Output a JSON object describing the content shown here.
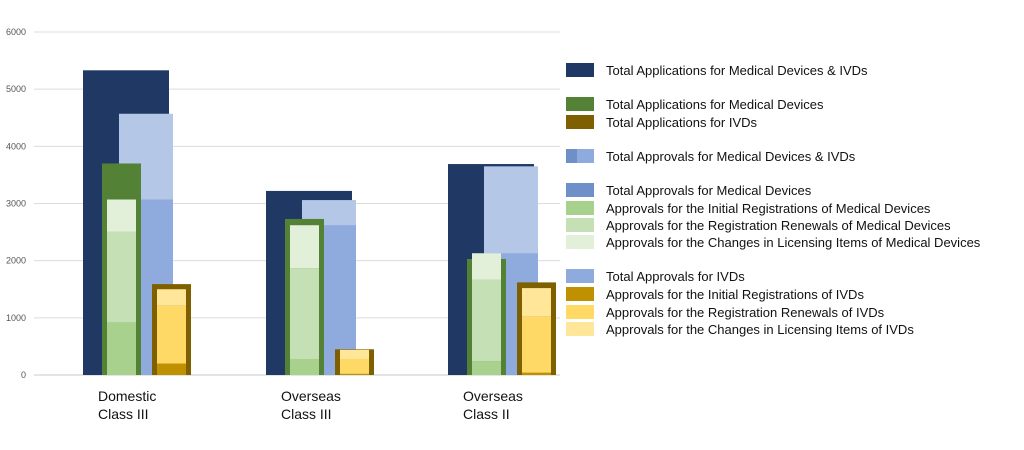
{
  "chart_data": {
    "type": "bar",
    "title": "",
    "xlabel": "",
    "ylabel": "",
    "ylim": [
      0,
      6000
    ],
    "yticks": [
      0,
      1000,
      2000,
      3000,
      4000,
      5000,
      6000
    ],
    "grid": true,
    "legend_position": "right",
    "categories": [
      {
        "line1": "Domestic",
        "line2": "Class III"
      },
      {
        "line1": "Overseas",
        "line2": "Class III"
      },
      {
        "line1": "Overseas",
        "line2": "Class II"
      }
    ],
    "series": [
      {
        "key": "total_apps",
        "name": "Total Applications for Medical Devices & IVDs",
        "values": [
          5330,
          3220,
          3690
        ]
      },
      {
        "key": "total_approvals",
        "name": "Total Approvals for Medical Devices & IVDs",
        "values": [
          4570,
          3060,
          3650
        ]
      },
      {
        "key": "total_approvals_md",
        "name": "Total Approvals for Medical Devices",
        "values": [
          3070,
          2620,
          2130
        ]
      },
      {
        "key": "apps_md",
        "name": "Total Applications for Medical Devices",
        "values": [
          3700,
          2730,
          2030
        ]
      },
      {
        "key": "appr_md_initial",
        "name": "Approvals for the Initial Registrations of Medical Devices",
        "values": [
          920,
          280,
          240
        ]
      },
      {
        "key": "appr_md_renewal",
        "name": "Approvals for the Registration Renewals of Medical Devices",
        "values": [
          1590,
          1590,
          1430
        ]
      },
      {
        "key": "appr_md_changes",
        "name": "Approvals for the Changes in Licensing Items of Medical Devices",
        "values": [
          560,
          750,
          460
        ]
      },
      {
        "key": "apps_ivd",
        "name": "Total Applications for IVDs",
        "values": [
          1590,
          450,
          1620
        ]
      },
      {
        "key": "total_approvals_ivd",
        "name": "Total Approvals for IVDs",
        "values": [
          1500,
          440,
          1520
        ]
      },
      {
        "key": "appr_ivd_initial",
        "name": "Approvals for the Initial Registrations of IVDs",
        "values": [
          200,
          20,
          40
        ]
      },
      {
        "key": "appr_ivd_renewal",
        "name": "Approvals for the Registration Renewals of IVDs",
        "values": [
          1010,
          260,
          980
        ]
      },
      {
        "key": "appr_ivd_changes",
        "name": "Approvals for the Changes in Licensing Items of IVDs",
        "values": [
          290,
          160,
          500
        ]
      }
    ],
    "colors": {
      "total_apps": "#1f3864",
      "total_approvals": "#b4c7e7",
      "total_approvals_md": "#8faadc",
      "apps_md": "#538135",
      "appr_md_initial": "#a9d18e",
      "appr_md_renewal": "#c5e0b4",
      "appr_md_changes": "#e2f0d9",
      "apps_ivd": "#7f6000",
      "total_approvals_ivd": "#ffd966",
      "appr_ivd_initial": "#bf9000",
      "appr_ivd_renewal": "#ffd966",
      "appr_ivd_changes": "#ffe699"
    }
  },
  "legend": [
    {
      "key": "leg-total-apps",
      "label": "Total Applications for Medical Devices & IVDs",
      "colors": [
        "#1f3864"
      ]
    },
    {
      "key": "leg-apps-md",
      "label": "Total Applications for Medical Devices",
      "colors": [
        "#538135"
      ]
    },
    {
      "key": "leg-apps-ivd",
      "label": "Total Applications for IVDs",
      "colors": [
        "#7f6000"
      ]
    },
    {
      "key": "leg-total-approvals",
      "label": "Total Approvals for Medical Devices & IVDs",
      "colors": [
        "#6f8fc9",
        "#8faadc"
      ]
    },
    {
      "key": "leg-approvals-md",
      "label": "Total Approvals for Medical Devices",
      "colors": [
        "#6f8fc9"
      ]
    },
    {
      "key": "leg-md-initial",
      "label": "Approvals for the Initial Registrations of Medical Devices",
      "colors": [
        "#a9d18e"
      ]
    },
    {
      "key": "leg-md-renewal",
      "label": "Approvals for the Registration Renewals of Medical Devices",
      "colors": [
        "#c5e0b4"
      ]
    },
    {
      "key": "leg-md-changes",
      "label": "Approvals for the Changes in Licensing Items of Medical Devices",
      "colors": [
        "#e2f0d9"
      ]
    },
    {
      "key": "leg-approvals-ivd",
      "label": "Total Approvals for IVDs",
      "colors": [
        "#8faadc"
      ]
    },
    {
      "key": "leg-ivd-initial",
      "label": "Approvals for the Initial Registrations of IVDs",
      "colors": [
        "#bf9000"
      ]
    },
    {
      "key": "leg-ivd-renewal",
      "label": "Approvals for the Registration Renewals of IVDs",
      "colors": [
        "#ffd966"
      ]
    },
    {
      "key": "leg-ivd-changes",
      "label": "Approvals for the Changes in Licensing Items of IVDs",
      "colors": [
        "#ffe699"
      ]
    }
  ]
}
